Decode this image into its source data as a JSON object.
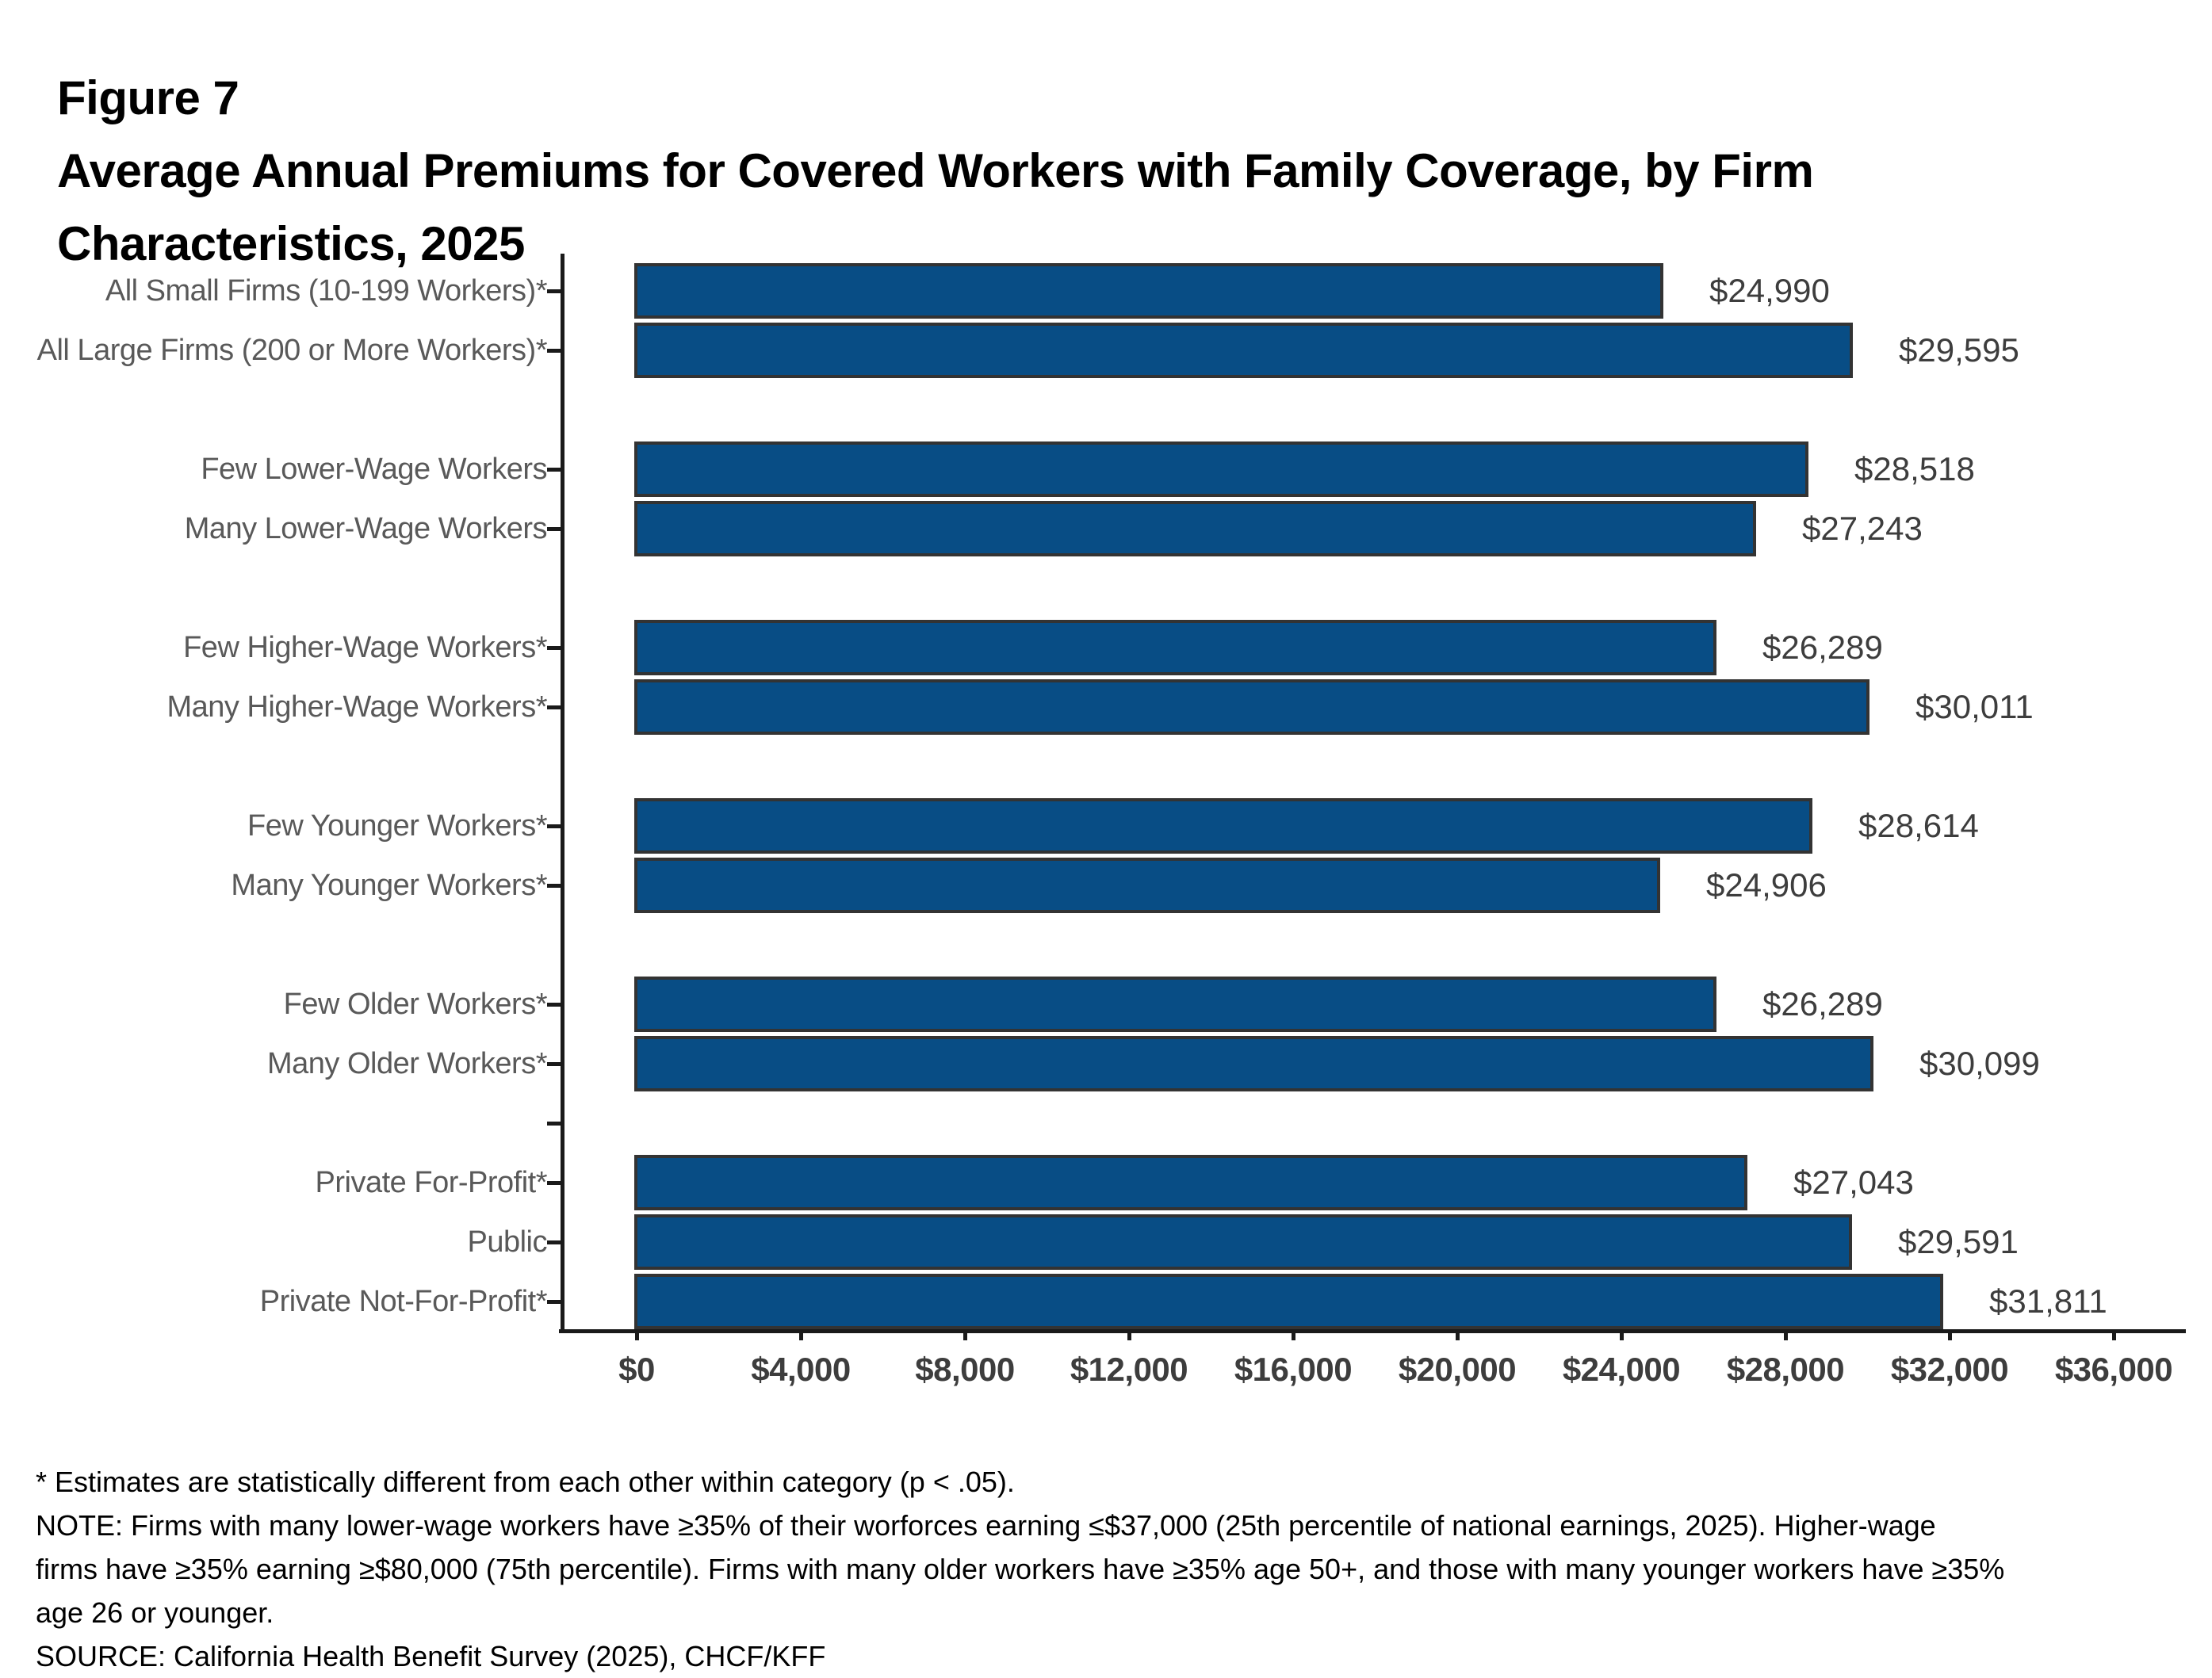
{
  "chart_data": {
    "type": "bar",
    "orientation": "horizontal",
    "figure_label": "Figure 7",
    "title_lines": [
      "Average Annual Premiums for Covered Workers with Family Coverage, by Firm",
      "Characteristics, 2025"
    ],
    "xlabel": "",
    "ylabel": "",
    "unit": "USD",
    "xlim": [
      0,
      36000
    ],
    "x_tick_step": 4000,
    "x_tick_labels": [
      "$0",
      "$4,000",
      "$8,000",
      "$12,000",
      "$16,000",
      "$20,000",
      "$24,000",
      "$28,000",
      "$32,000",
      "$36,000"
    ],
    "grid": false,
    "legend": "none",
    "groups": [
      {
        "rows": [
          {
            "label": "All Small Firms (10-199 Workers)*",
            "value": 24990,
            "value_label": "$24,990"
          },
          {
            "label": "All Large Firms (200 or More Workers)*",
            "value": 29595,
            "value_label": "$29,595"
          }
        ]
      },
      {
        "rows": [
          {
            "label": "Few Lower-Wage Workers",
            "value": 28518,
            "value_label": "$28,518"
          },
          {
            "label": "Many Lower-Wage Workers",
            "value": 27243,
            "value_label": "$27,243"
          }
        ]
      },
      {
        "rows": [
          {
            "label": "Few Higher-Wage Workers*",
            "value": 26289,
            "value_label": "$26,289"
          },
          {
            "label": "Many Higher-Wage Workers*",
            "value": 30011,
            "value_label": "$30,011"
          }
        ]
      },
      {
        "rows": [
          {
            "label": "Few Younger Workers*",
            "value": 28614,
            "value_label": "$28,614"
          },
          {
            "label": "Many Younger Workers*",
            "value": 24906,
            "value_label": "$24,906"
          }
        ]
      },
      {
        "rows": [
          {
            "label": "Few Older Workers*",
            "value": 26289,
            "value_label": "$26,289"
          },
          {
            "label": "Many Older Workers*",
            "value": 30099,
            "value_label": "$30,099"
          }
        ]
      },
      {
        "rows": [
          {
            "label": "Private For-Profit*",
            "value": 27043,
            "value_label": "$27,043"
          },
          {
            "label": "Public",
            "value": 29591,
            "value_label": "$29,591"
          },
          {
            "label": "Private Not-For-Profit*",
            "value": 31811,
            "value_label": "$31,811"
          }
        ]
      }
    ],
    "unlabeled_spacer_tick_slots": [
      14
    ],
    "colors": {
      "bar_fill": "#084D85",
      "bar_border": "#333333",
      "axis": "#1a1a1a",
      "category_label": "#595959",
      "value_label": "#3d3d3d",
      "x_tick_label": "#3d3d3d",
      "footnote": "#000000",
      "title": "#000000"
    }
  },
  "footnotes": {
    "significance": "* Estimates are statistically different from each other within category (p < .05).",
    "note_lines": [
      "NOTE: Firms with many lower-wage workers have ≥35% of their worforces earning ≤$37,000 (25th percentile of national earnings, 2025). Higher-wage",
      "firms have ≥35% earning ≥$80,000 (75th percentile). Firms with many older workers have ≥35% age 50+, and those with many younger workers have ≥35%",
      "age 26 or younger."
    ],
    "source": "SOURCE: California Health Benefit Survey (2025), CHCF/KFF"
  }
}
